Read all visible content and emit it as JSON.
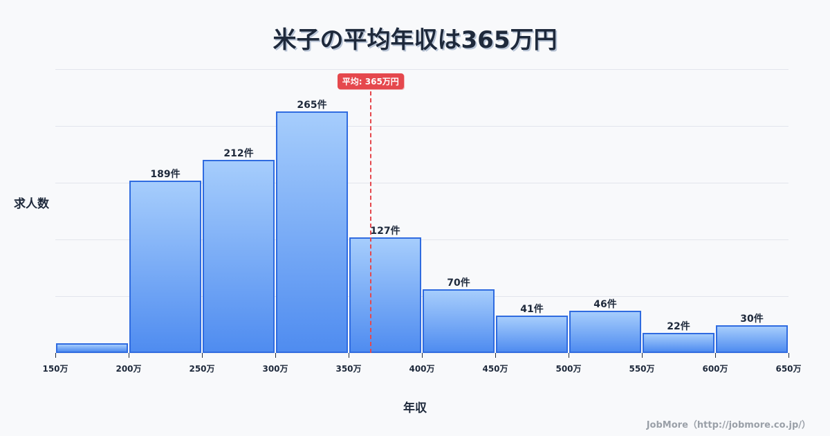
{
  "title": "米子の平均年収は365万円",
  "axes": {
    "ylabel": "求人数",
    "xlabel": "年収"
  },
  "mean": {
    "label": "平均: 365万円",
    "value": 365
  },
  "credit": "JobMore（http://jobmore.co.jp/）",
  "colors": {
    "bar_border": "#2f6be0",
    "bar_top": "#a6cdfc",
    "bar_bottom": "#4f8cf0",
    "mean_line": "#e5484d",
    "background": "#f8f9fb"
  },
  "chart_data": {
    "type": "bar",
    "title": "米子の平均年収は365万円",
    "xlabel": "年収",
    "ylabel": "求人数",
    "categories": [
      "150-200万",
      "200-250万",
      "250-300万",
      "300-350万",
      "350-400万",
      "400-450万",
      "450-500万",
      "500-550万",
      "550-600万",
      "600-650万"
    ],
    "values": [
      11,
      189,
      212,
      265,
      127,
      70,
      41,
      46,
      22,
      30
    ],
    "labels": [
      "",
      "189件",
      "212件",
      "265件",
      "127件",
      "70件",
      "41件",
      "46件",
      "22件",
      "30件"
    ],
    "x_ticks": [
      "150万",
      "200万",
      "250万",
      "300万",
      "350万",
      "400万",
      "450万",
      "500万",
      "550万",
      "600万",
      "650万"
    ],
    "xlim": [
      150,
      650
    ],
    "ylim": [
      0,
      311
    ],
    "grid": true,
    "annotations": [
      {
        "type": "vline",
        "x": 365,
        "label": "平均: 365万円",
        "style": "dashed",
        "color": "#e5484d"
      }
    ],
    "legend": null
  }
}
